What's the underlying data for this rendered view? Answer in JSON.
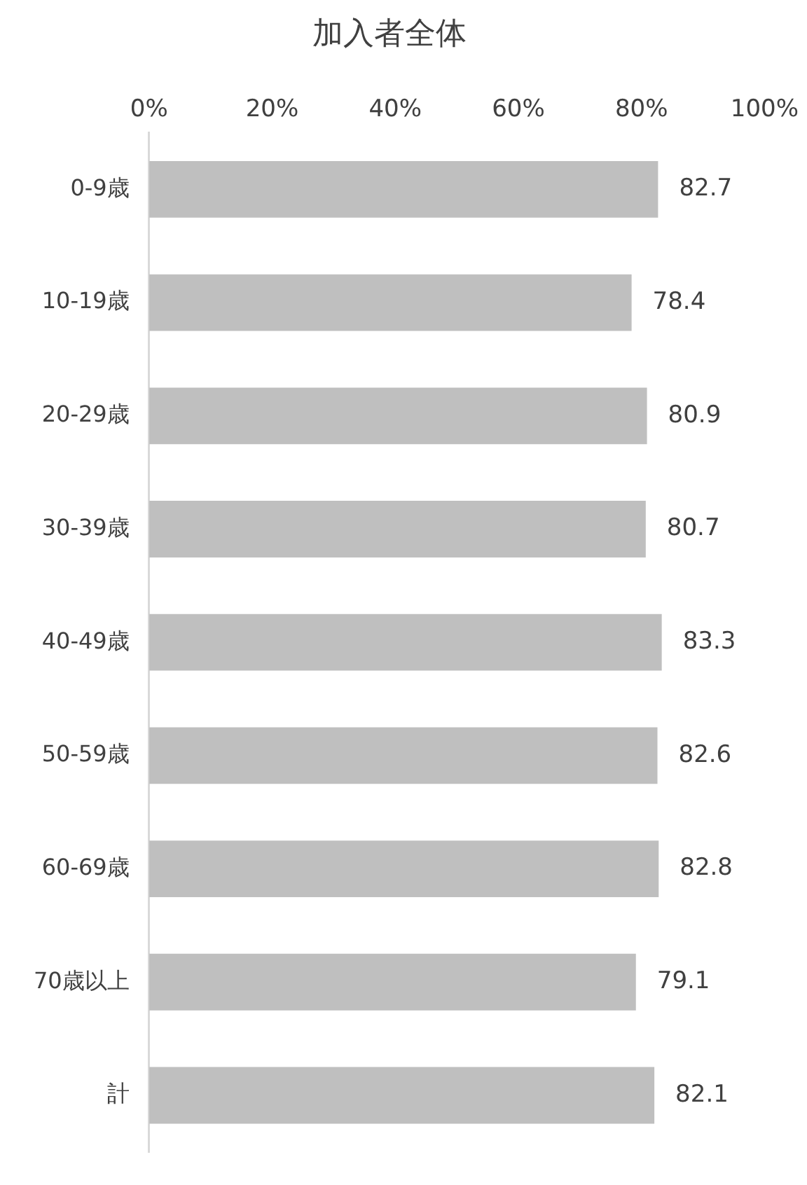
{
  "chart_data": {
    "type": "bar",
    "orientation": "horizontal",
    "title": "加入者全体",
    "categories": [
      "0-9歳",
      "10-19歳",
      "20-29歳",
      "30-39歳",
      "40-49歳",
      "50-59歳",
      "60-69歳",
      "70歳以上",
      "計"
    ],
    "values": [
      82.7,
      78.4,
      80.9,
      80.7,
      83.3,
      82.6,
      82.8,
      79.1,
      82.1
    ],
    "color": "#bfbfbf",
    "xlim": [
      0,
      100
    ],
    "xticks": [
      {
        "value": 0,
        "label": "0%"
      },
      {
        "value": 20,
        "label": "20%"
      },
      {
        "value": 40,
        "label": "40%"
      },
      {
        "value": 60,
        "label": "60%"
      },
      {
        "value": 80,
        "label": "80%"
      },
      {
        "value": 100,
        "label": "100%"
      }
    ],
    "data_labels": true
  }
}
